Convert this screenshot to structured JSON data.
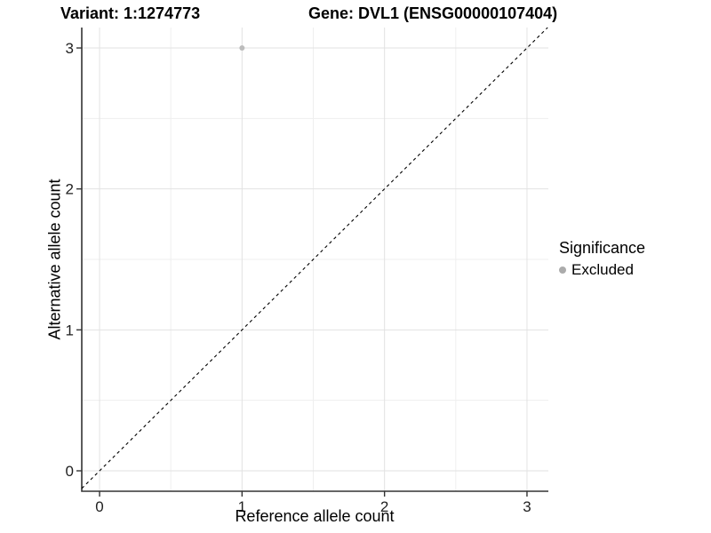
{
  "titles": {
    "variant": "Variant: 1:1274773",
    "gene": "Gene: DVL1 (ENSG00000107404)"
  },
  "legend": {
    "title": "Significance",
    "items": [
      {
        "label": "Excluded",
        "color": "#ababab",
        "marker": "dot"
      }
    ]
  },
  "chart_data": {
    "type": "scatter",
    "title": "Variant: 1:1274773   Gene: DVL1 (ENSG00000107404)",
    "xlabel": "Reference allele count",
    "ylabel": "Alternative allele count",
    "xlim": [
      -0.125,
      3.15
    ],
    "ylim": [
      -0.145,
      3.145
    ],
    "x_ticks": [
      0,
      1,
      2,
      3
    ],
    "y_ticks": [
      0,
      1,
      2,
      3
    ],
    "x_minor_ticks": [
      0.5,
      1.5,
      2.5
    ],
    "y_minor_ticks": [
      0.5,
      1.5,
      2.5
    ],
    "grid": "major+minor",
    "legend_position": "right",
    "series": [
      {
        "name": "Excluded",
        "points": [
          {
            "x": 1,
            "y": 3
          }
        ],
        "color": "#bcbcbc"
      }
    ],
    "identity_line": {
      "equation": "y = x",
      "style": "dashed",
      "color": "#000000"
    },
    "colors": {
      "background": "#ffffff",
      "grid_major": "#e2e2e2",
      "grid_minor": "#efefef",
      "axis": "#333333",
      "tick_label": "#1f1f1f",
      "point": "#bcbcbc",
      "legend_dot": "#ababab"
    }
  }
}
